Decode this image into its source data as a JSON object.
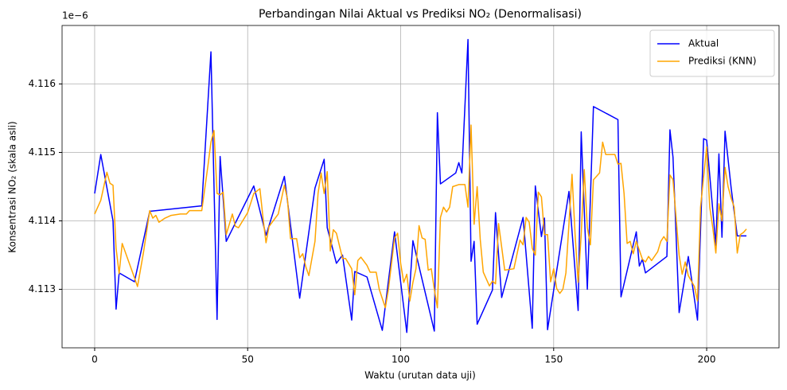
{
  "chart_data": {
    "type": "line",
    "title": "Perbandingan Nilai Aktual vs Prediksi NO₂ (Denormalisasi)",
    "x_label": "Waktu (urutan data uji)",
    "y_label": "Konsentrasi NO₂ (skala asli)",
    "y_offset_label": "1e−6",
    "xlim": [
      -10.65,
      223.65
    ],
    "xticks": [
      0,
      50,
      100,
      150,
      200
    ],
    "ylim": [
      4.112145,
      4.116855
    ],
    "yticks": [
      4.113,
      4.114,
      4.115,
      4.116
    ],
    "grid": true,
    "legend": "upper right",
    "series": [
      {
        "name": "Aktual",
        "color": "#0000ff",
        "x": [
          0,
          2,
          6,
          7,
          8,
          13,
          18,
          35,
          38,
          40,
          41,
          43,
          52,
          56,
          62,
          67,
          72,
          75,
          76,
          79,
          81,
          84,
          85,
          89,
          94,
          98,
          102,
          104,
          111,
          112,
          113,
          118,
          119,
          120,
          122,
          123,
          124,
          125,
          130,
          131,
          133,
          140,
          143,
          144,
          146,
          147,
          148,
          155,
          158,
          159,
          161,
          163,
          171,
          172,
          177,
          178,
          179,
          180,
          187,
          188,
          189,
          191,
          194,
          197,
          199,
          200,
          203,
          204,
          205,
          206,
          208,
          210,
          213
        ],
        "values": [
          4.1144,
          4.11497,
          4.114,
          4.11271,
          4.11324,
          4.11311,
          4.11414,
          4.11422,
          4.11647,
          4.11256,
          4.11494,
          4.1137,
          4.11451,
          4.11379,
          4.11465,
          4.11287,
          4.11448,
          4.1149,
          4.1139,
          4.11338,
          4.1135,
          4.11255,
          4.11326,
          4.11318,
          4.1124,
          4.11384,
          4.11237,
          4.11371,
          4.11239,
          4.11558,
          4.11454,
          4.1147,
          4.11485,
          4.1147,
          4.11665,
          4.11341,
          4.1137,
          4.11249,
          4.11299,
          4.11412,
          4.11288,
          4.11405,
          4.11243,
          4.11451,
          4.11377,
          4.11404,
          4.11241,
          4.11443,
          4.11269,
          4.1153,
          4.113,
          4.11567,
          4.11548,
          4.11289,
          4.11384,
          4.11334,
          4.11344,
          4.11324,
          4.11348,
          4.11533,
          4.11493,
          4.11266,
          4.11348,
          4.11255,
          4.1152,
          4.11518,
          4.11364,
          4.11498,
          4.11376,
          4.11531,
          4.11448,
          4.11378,
          4.11378
        ]
      },
      {
        "name": "Prediksi (KNN)",
        "color": "#ffa500",
        "x": [
          0,
          2,
          4,
          5,
          6,
          7,
          8,
          9,
          13,
          14,
          16,
          18,
          19,
          20,
          21,
          23,
          25,
          28,
          30,
          31,
          35,
          37,
          38,
          39,
          40,
          41,
          42,
          43,
          45,
          46,
          47,
          50,
          52,
          54,
          55,
          56,
          57,
          60,
          62,
          63,
          64,
          66,
          67,
          68,
          69,
          70,
          72,
          73,
          74,
          75,
          76,
          77,
          78,
          79,
          81,
          82,
          84,
          85,
          86,
          87,
          89,
          90,
          92,
          93,
          95,
          96,
          98,
          99,
          100,
          101,
          102,
          103,
          104,
          105,
          106,
          107,
          108,
          109,
          110,
          111,
          112,
          113,
          114,
          115,
          116,
          117,
          119,
          121,
          122,
          123,
          124,
          125,
          126,
          127,
          129,
          130,
          131,
          132,
          134,
          137,
          139,
          140,
          141,
          142,
          143,
          144,
          145,
          146,
          147,
          148,
          149,
          150,
          151,
          152,
          153,
          154,
          156,
          157,
          158,
          159,
          160,
          161,
          162,
          163,
          165,
          166,
          167,
          170,
          171,
          172,
          173,
          174,
          175,
          176,
          177,
          179,
          180,
          181,
          182,
          184,
          185,
          186,
          187,
          188,
          189,
          191,
          192,
          193,
          194,
          196,
          197,
          198,
          200,
          201,
          202,
          203,
          204,
          205,
          206,
          207,
          208,
          209,
          210,
          211,
          212,
          213
        ],
        "values": [
          4.1141,
          4.1143,
          4.11471,
          4.11455,
          4.11452,
          4.1136,
          4.11323,
          4.11367,
          4.11317,
          4.11304,
          4.11355,
          4.11415,
          4.11404,
          4.11408,
          4.11398,
          4.11404,
          4.11408,
          4.1141,
          4.1141,
          4.11415,
          4.11415,
          4.1148,
          4.11515,
          4.11532,
          4.1144,
          4.11438,
          4.11442,
          4.1138,
          4.1141,
          4.11392,
          4.1139,
          4.11412,
          4.1144,
          4.11447,
          4.11405,
          4.11368,
          4.11392,
          4.1141,
          4.11452,
          4.11432,
          4.11374,
          4.11374,
          4.11346,
          4.11352,
          4.11333,
          4.1132,
          4.1137,
          4.1144,
          4.1147,
          4.1144,
          4.11472,
          4.11356,
          4.11387,
          4.11382,
          4.11345,
          4.11345,
          4.1133,
          4.11292,
          4.11342,
          4.11347,
          4.11335,
          4.11325,
          4.11325,
          4.113,
          4.11273,
          4.113,
          4.11375,
          4.11382,
          4.11338,
          4.1131,
          4.11322,
          4.11283,
          4.1131,
          4.1133,
          4.11393,
          4.11375,
          4.11373,
          4.11328,
          4.1133,
          4.113,
          4.11273,
          4.11405,
          4.1142,
          4.11413,
          4.1142,
          4.1145,
          4.11453,
          4.11453,
          4.1142,
          4.1154,
          4.11395,
          4.1145,
          4.11373,
          4.11325,
          4.11305,
          4.11312,
          4.11308,
          4.11396,
          4.11328,
          4.1133,
          4.11372,
          4.11365,
          4.11405,
          4.11398,
          4.1136,
          4.1135,
          4.11442,
          4.11435,
          4.1138,
          4.1138,
          4.11311,
          4.1133,
          4.11301,
          4.11294,
          4.113,
          4.11324,
          4.11468,
          4.1138,
          4.1131,
          4.1138,
          4.11475,
          4.1139,
          4.11365,
          4.1146,
          4.1147,
          4.11515,
          4.11497,
          4.11497,
          4.11483,
          4.11484,
          4.1144,
          4.11367,
          4.1137,
          4.11352,
          4.1137,
          4.11344,
          4.1134,
          4.11348,
          4.11342,
          4.11355,
          4.1137,
          4.11377,
          4.1137,
          4.11467,
          4.1146,
          4.1135,
          4.11322,
          4.1134,
          4.1132,
          4.11304,
          4.11283,
          4.1142,
          4.11508,
          4.1142,
          4.1139,
          4.11353,
          4.11425,
          4.114,
          4.11478,
          4.1145,
          4.11433,
          4.1142,
          4.11353,
          4.1138,
          4.11383,
          4.11388
        ]
      }
    ]
  }
}
